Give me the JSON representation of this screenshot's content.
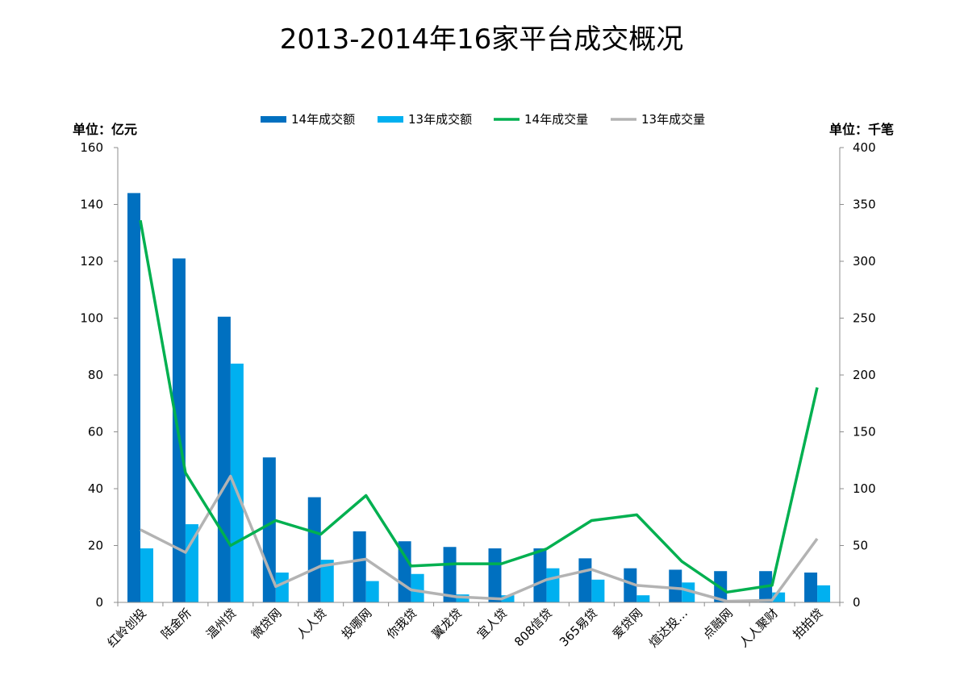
{
  "chart_data": {
    "type": "bar",
    "title": "2013-2014年16家平台成交概况",
    "left_unit_label": "单位：亿元",
    "right_unit_label": "单位：千笔",
    "categories": [
      "红岭创投",
      "陆金所",
      "温州贷",
      "微贷网",
      "人人贷",
      "投哪网",
      "你我贷",
      "翼龙贷",
      "宜人贷",
      "808信贷",
      "365易贷",
      "爱贷网",
      "煊达投…",
      "点融网",
      "人人聚财",
      "拍拍贷"
    ],
    "y_left": {
      "min": 0,
      "max": 160,
      "step": 20,
      "ticks": [
        "0",
        "20",
        "40",
        "60",
        "80",
        "100",
        "120",
        "140",
        "160"
      ]
    },
    "y_right": {
      "min": 0,
      "max": 400,
      "step": 50,
      "ticks": [
        "0",
        "50",
        "100",
        "150",
        "200",
        "250",
        "300",
        "350",
        "400"
      ]
    },
    "series": [
      {
        "name": "14年成交额",
        "type": "bar",
        "axis": "left",
        "color": "#0070c0",
        "values": [
          144,
          121,
          100.5,
          51,
          37,
          25,
          21.5,
          19.5,
          19,
          19,
          15.5,
          12,
          11.5,
          11,
          11,
          10.5
        ]
      },
      {
        "name": "13年成交额",
        "type": "bar",
        "axis": "left",
        "color": "#00b0f0",
        "values": [
          19,
          27.5,
          84,
          10.5,
          15,
          7.5,
          10,
          2.8,
          2.5,
          12,
          8,
          2.5,
          7,
          0,
          3.5,
          6
        ]
      },
      {
        "name": "14年成交量",
        "type": "line",
        "axis": "right",
        "color": "#00b050",
        "values": [
          336,
          114,
          50,
          72,
          60,
          94,
          32,
          34,
          34,
          47,
          72,
          77,
          36,
          9,
          15,
          189
        ]
      },
      {
        "name": "13年成交量",
        "type": "line",
        "axis": "right",
        "color": "#b3b3b3",
        "values": [
          64,
          44,
          111,
          14,
          32,
          38,
          11,
          5,
          3,
          20,
          29,
          15,
          12,
          1,
          2,
          56
        ]
      }
    ],
    "legend": "top",
    "grid": false
  }
}
